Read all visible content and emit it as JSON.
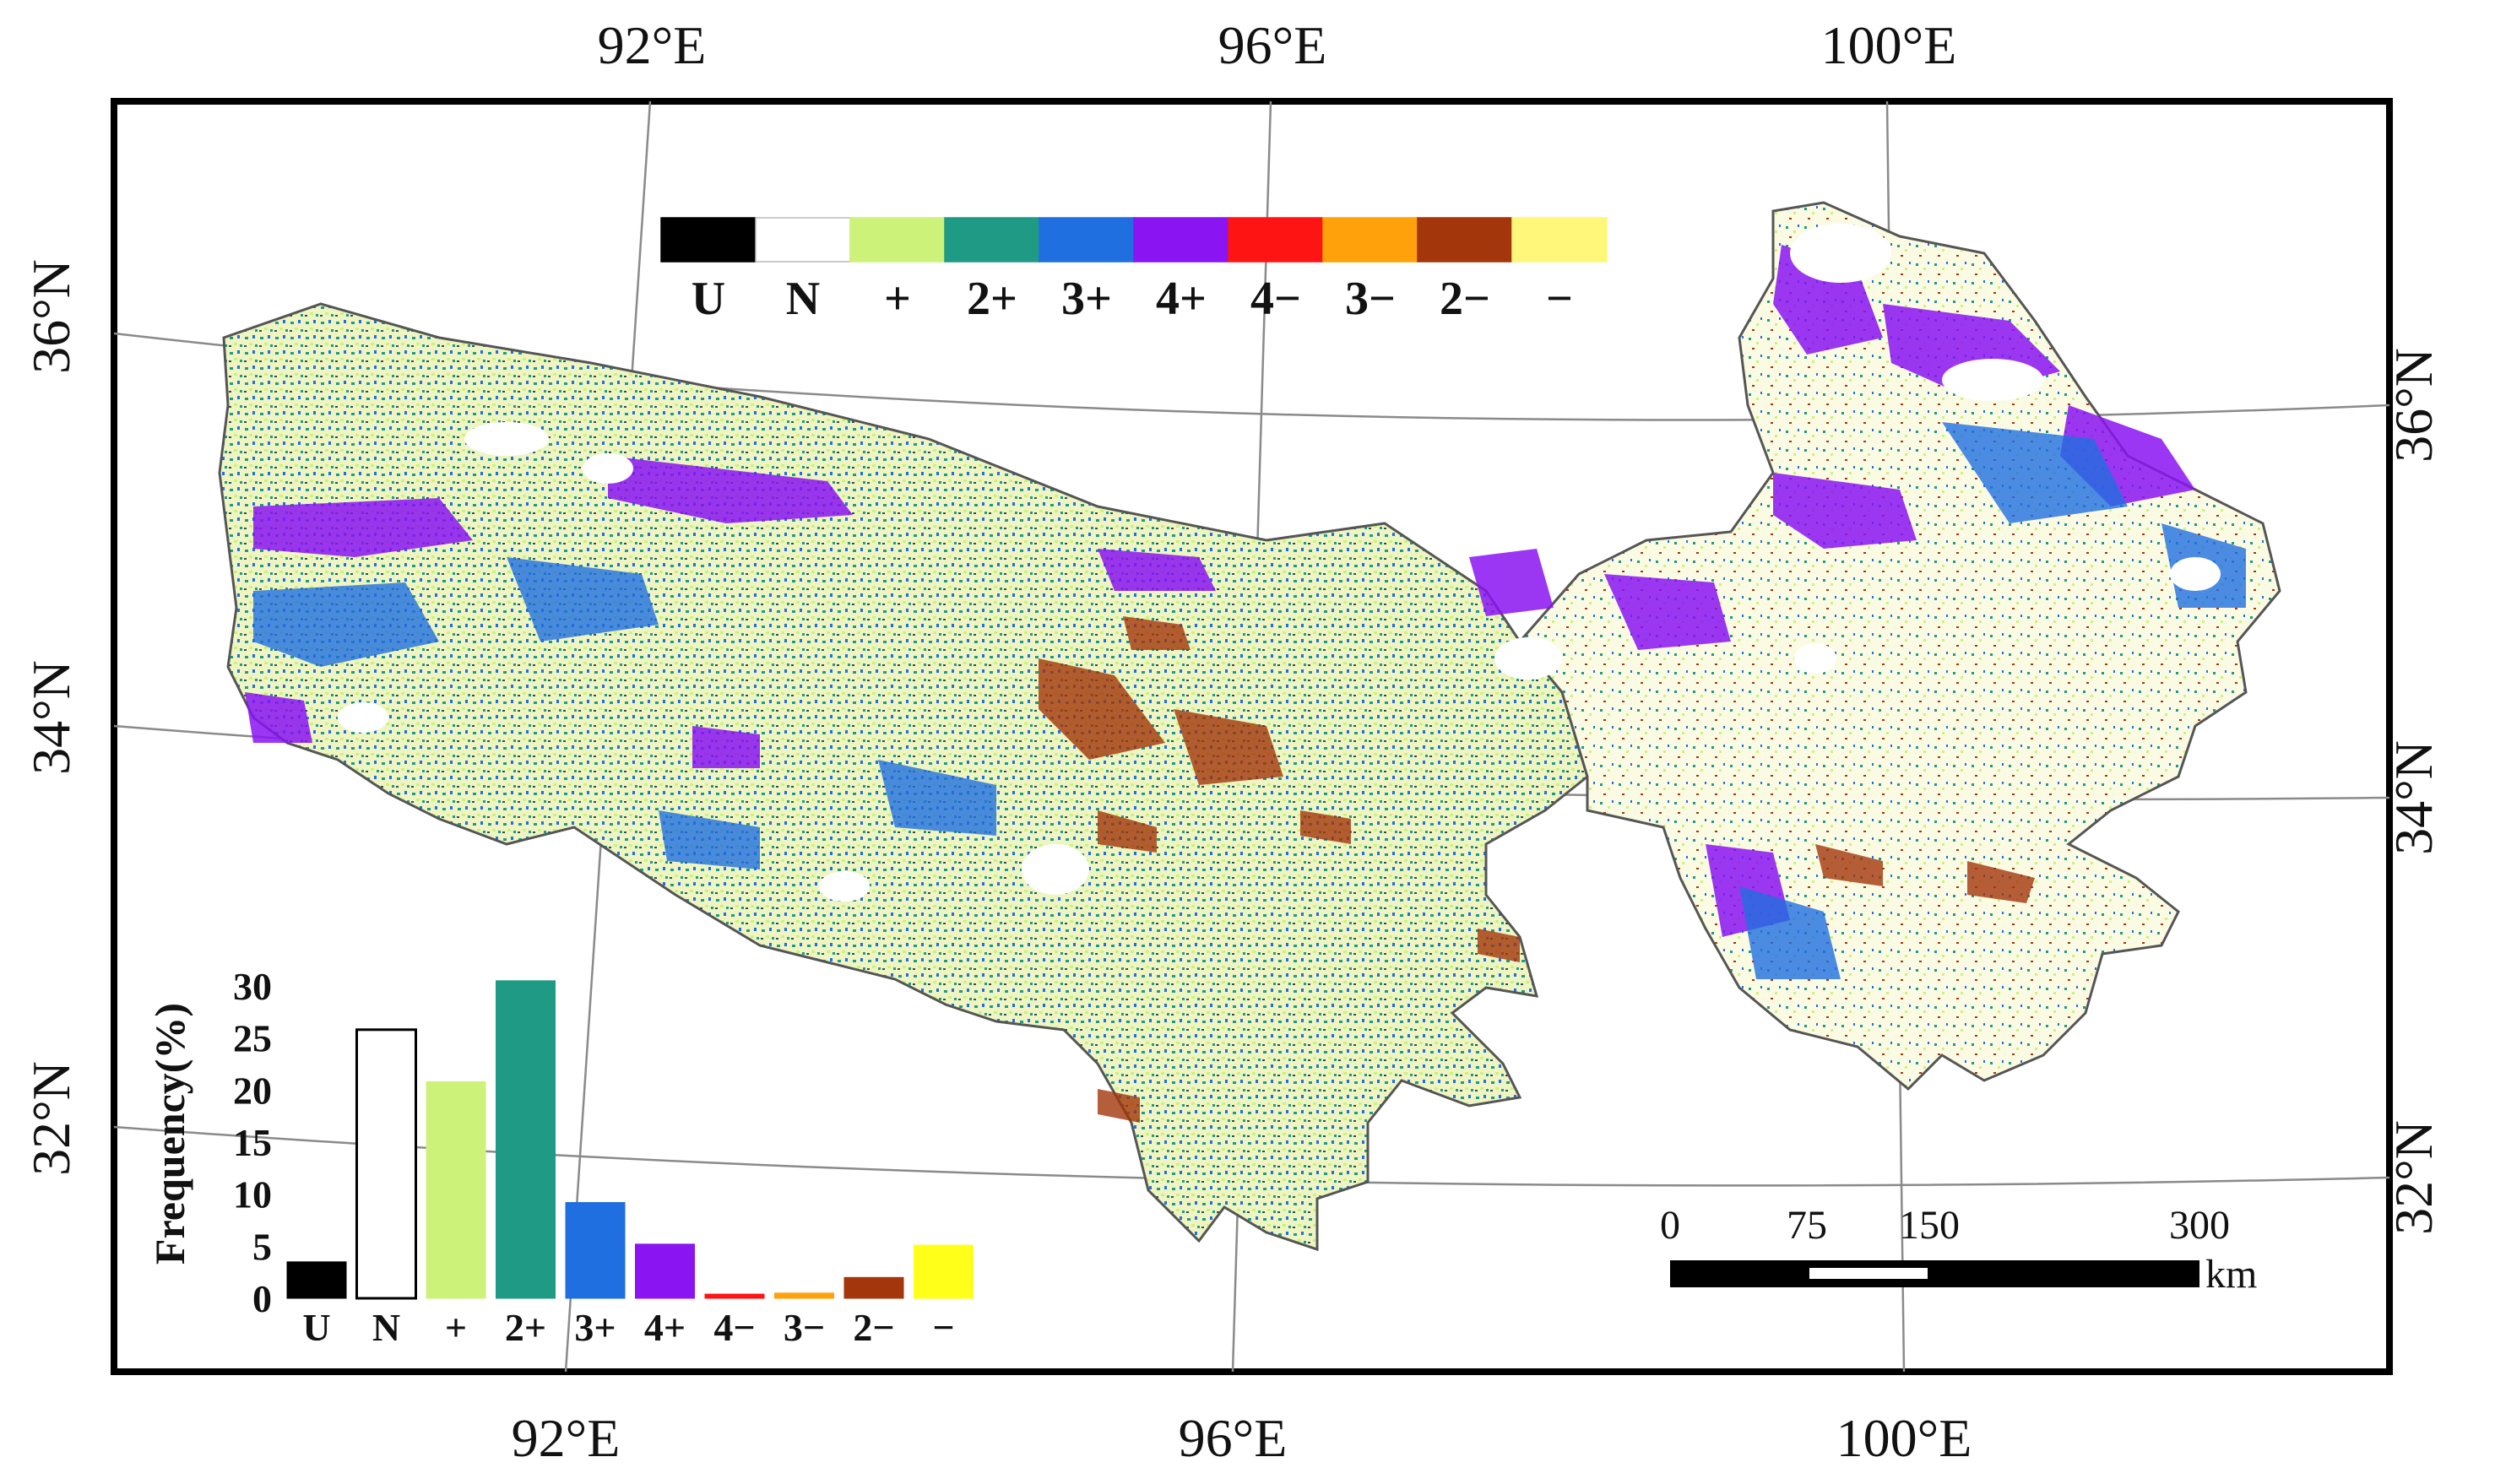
{
  "axes": {
    "top_lon": [
      "92°E",
      "96°E",
      "100°E"
    ],
    "bottom_lon": [
      "92°E",
      "96°E",
      "100°E"
    ],
    "left_lat": [
      "36°N",
      "34°N",
      "32°N"
    ],
    "right_lat": [
      "36°N",
      "34°N",
      "32°N"
    ]
  },
  "legend": {
    "items": [
      {
        "label": "U",
        "color": "#000000"
      },
      {
        "label": "N",
        "color": "#ffffff"
      },
      {
        "label": "+",
        "color": "#ccf27a"
      },
      {
        "label": "2+",
        "color": "#1f9a84"
      },
      {
        "label": "3+",
        "color": "#1f6fe0"
      },
      {
        "label": "4+",
        "color": "#8a14f2"
      },
      {
        "label": "4−",
        "color": "#ff1414"
      },
      {
        "label": "3−",
        "color": "#ffa10a"
      },
      {
        "label": "2−",
        "color": "#a3360a"
      },
      {
        "label": "−",
        "color": "#fff77a"
      }
    ]
  },
  "chart_data": {
    "type": "bar",
    "ylabel": "Frequency(%)",
    "ylim": [
      0,
      30
    ],
    "yticks": [
      "0",
      "5",
      "10",
      "15",
      "20",
      "25",
      "30"
    ],
    "categories": [
      "U",
      "N",
      "+",
      "2+",
      "3+",
      "4+",
      "4−",
      "3−",
      "2−",
      "−"
    ],
    "values": [
      3.5,
      25.8,
      20.8,
      30.5,
      9.2,
      5.2,
      0.4,
      0.5,
      2.0,
      5.1
    ],
    "colors": [
      "#000000",
      "#ffffff",
      "#ccf27a",
      "#1f9a84",
      "#1f6fe0",
      "#8a14f2",
      "#ff1414",
      "#ffa10a",
      "#a3360a",
      "#ffff1a"
    ]
  },
  "scale_bar": {
    "ticks": [
      "0",
      "75",
      "150",
      "300"
    ],
    "unit": "km"
  }
}
